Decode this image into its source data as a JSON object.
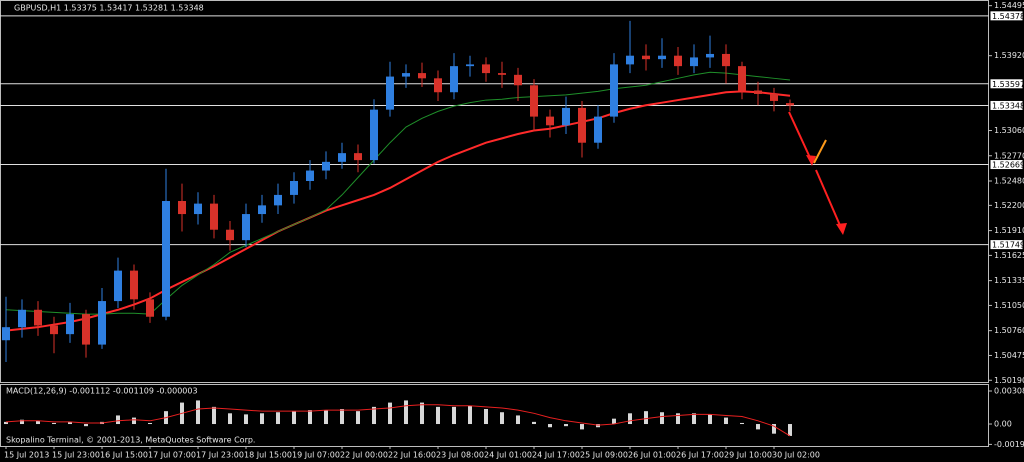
{
  "chart_data": [
    {
      "type": "candlestick",
      "title": "GBPUSD,H1  1.53375 1.53417 1.53281 1.53348",
      "categories": [
        "15 Jul 2013",
        null,
        null,
        "15 Jul 23:00",
        null,
        null,
        "16 Jul 15:00",
        null,
        null,
        "17 Jul 07:00",
        null,
        null,
        "17 Jul 23:00",
        null,
        null,
        "18 Jul 15:00",
        null,
        null,
        "19 Jul 07:00",
        null,
        null,
        "22 Jul 00:00",
        null,
        null,
        "22 Jul 16:00",
        null,
        null,
        "23 Jul 08:00",
        null,
        null,
        "24 Jul 01:00",
        null,
        null,
        "24 Jul 17:00",
        null,
        null,
        "25 Jul 09:00",
        null,
        null,
        "26 Jul 01:00",
        null,
        null,
        "26 Jul 17:00",
        null,
        null,
        "29 Jul 10:00",
        null,
        null,
        "30 Jul 02:00",
        null
      ],
      "open": [
        1.5065,
        1.508,
        1.51,
        1.5082,
        1.5072,
        1.5095,
        1.506,
        1.511,
        1.5145,
        1.5112,
        1.5092,
        1.5225,
        1.521,
        1.5222,
        1.5192,
        1.518,
        1.521,
        1.522,
        1.5232,
        1.5248,
        1.526,
        1.527,
        1.528,
        1.5272,
        1.533,
        1.5368,
        1.5372,
        1.5366,
        1.535,
        1.538,
        1.5382,
        1.5372,
        1.537,
        1.5358,
        1.5322,
        1.5312,
        1.5332,
        1.5292,
        1.5322,
        1.5382,
        1.5392,
        1.5388,
        1.5392,
        1.538,
        1.539,
        1.5394,
        1.538,
        1.5352,
        1.5348,
        1.53375
      ],
      "high": [
        1.5115,
        1.5112,
        1.511,
        1.5092,
        1.5108,
        1.51,
        1.5125,
        1.516,
        1.5152,
        1.512,
        1.5262,
        1.5245,
        1.5235,
        1.5232,
        1.5202,
        1.5222,
        1.5232,
        1.5245,
        1.5258,
        1.5272,
        1.5282,
        1.5292,
        1.529,
        1.5342,
        1.5385,
        1.5382,
        1.5384,
        1.5375,
        1.5395,
        1.5392,
        1.539,
        1.5385,
        1.5378,
        1.5365,
        1.533,
        1.5345,
        1.534,
        1.5335,
        1.5395,
        1.5432,
        1.5405,
        1.5412,
        1.5402,
        1.5405,
        1.5415,
        1.5405,
        1.5385,
        1.5362,
        1.5355,
        1.53417
      ],
      "low": [
        1.504,
        1.5068,
        1.507,
        1.505,
        1.5062,
        1.5045,
        1.5055,
        1.5102,
        1.51,
        1.5085,
        1.5088,
        1.519,
        1.5198,
        1.5182,
        1.5168,
        1.5172,
        1.52,
        1.521,
        1.5222,
        1.5238,
        1.525,
        1.5262,
        1.5258,
        1.5268,
        1.5322,
        1.5355,
        1.5356,
        1.534,
        1.5342,
        1.5368,
        1.5362,
        1.5355,
        1.534,
        1.5305,
        1.5298,
        1.5302,
        1.5275,
        1.5285,
        1.5315,
        1.5372,
        1.5375,
        1.5378,
        1.537,
        1.5372,
        1.5378,
        1.536,
        1.5342,
        1.5335,
        1.5328,
        1.53281
      ],
      "close": [
        1.508,
        1.51,
        1.5082,
        1.5072,
        1.5095,
        1.506,
        1.511,
        1.5145,
        1.5112,
        1.5092,
        1.5225,
        1.521,
        1.5222,
        1.5192,
        1.518,
        1.521,
        1.522,
        1.5232,
        1.5248,
        1.526,
        1.527,
        1.528,
        1.5272,
        1.533,
        1.5368,
        1.5372,
        1.5366,
        1.535,
        1.538,
        1.5382,
        1.5372,
        1.537,
        1.5358,
        1.5322,
        1.5312,
        1.5332,
        1.5292,
        1.5322,
        1.5382,
        1.5392,
        1.5388,
        1.5392,
        1.538,
        1.539,
        1.5394,
        1.538,
        1.5352,
        1.5348,
        1.534,
        1.53348
      ],
      "up_color": "#2f7fe0",
      "down_color": "#d8322a",
      "lines": [
        {
          "color": "#ff2a2a",
          "values": [
            1.5076,
            1.5078,
            1.508,
            1.5083,
            1.5086,
            1.509,
            1.5095,
            1.51,
            1.5106,
            1.5113,
            1.5123,
            1.5132,
            1.5141,
            1.515,
            1.516,
            1.517,
            1.518,
            1.519,
            1.5198,
            1.5206,
            1.5214,
            1.522,
            1.5226,
            1.5232,
            1.524,
            1.525,
            1.526,
            1.527,
            1.5278,
            1.5285,
            1.5292,
            1.5297,
            1.5302,
            1.5306,
            1.5308,
            1.5312,
            1.5316,
            1.532,
            1.5326,
            1.5331,
            1.5335,
            1.5338,
            1.5341,
            1.5344,
            1.5347,
            1.535,
            1.5351,
            1.535,
            1.5348,
            1.5346
          ]
        },
        {
          "color": "#1f8f2a",
          "values": [
            1.51,
            1.5099,
            1.5098,
            1.5097,
            1.5096,
            1.5095,
            1.5095,
            1.5096,
            1.5096,
            1.5095,
            1.5112,
            1.5128,
            1.514,
            1.5152,
            1.5166,
            1.5174,
            1.5182,
            1.519,
            1.5198,
            1.5206,
            1.5215,
            1.5232,
            1.5252,
            1.5272,
            1.5292,
            1.531,
            1.532,
            1.5328,
            1.5334,
            1.5338,
            1.5341,
            1.5342,
            1.5344,
            1.5345,
            1.5346,
            1.5347,
            1.5349,
            1.5351,
            1.5354,
            1.5356,
            1.5358,
            1.5362,
            1.5366,
            1.537,
            1.5373,
            1.5372,
            1.537,
            1.5368,
            1.5366,
            1.5364
          ]
        }
      ],
      "levels": [
        1.54378,
        1.53597,
        1.53348,
        1.52669,
        1.51749
      ],
      "ylim": [
        1.5017,
        1.5456
      ],
      "yticks": [
        1.54495,
        {
          "value": 1.5392,
          "label": "1.53920"
        },
        {
          "value": 1.5306,
          "label": "1.53060"
        },
        {
          "value": 1.5277,
          "label": "1.52770"
        },
        {
          "value": 1.5248,
          "label": "1.52480"
        },
        {
          "value": 1.522,
          "label": "1.52200"
        },
        {
          "value": 1.5191,
          "label": "1.51910"
        },
        1.51625,
        1.51335,
        {
          "value": 1.5105,
          "label": "1.51050"
        },
        {
          "value": 1.5076,
          "label": "1.50760"
        },
        1.50475,
        {
          "value": 1.5019,
          "label": "1.50190"
        }
      ]
    },
    {
      "type": "macd",
      "title": "MACD(12,26,9) -0.001112 -0.001109 -0.000003",
      "color": "#d8d8d8",
      "values": [
        0.0002,
        0.0004,
        0.0003,
        0.0001,
        0.0002,
        -0.0002,
        0.0002,
        0.0008,
        0.0006,
        0.0001,
        0.0012,
        0.002,
        0.0022,
        0.0016,
        0.001,
        0.0009,
        0.001,
        0.0011,
        0.0012,
        0.0013,
        0.0013,
        0.0014,
        0.0012,
        0.0016,
        0.002,
        0.0022,
        0.002,
        0.0016,
        0.0016,
        0.0017,
        0.0014,
        0.0011,
        0.0008,
        0.0002,
        -0.0003,
        -0.0002,
        -0.0005,
        -0.0003,
        0.0005,
        0.001,
        0.0012,
        0.0011,
        0.001,
        0.001,
        0.0009,
        0.0006,
        0.0001,
        -0.0005,
        -0.0009,
        -0.001112
      ],
      "lines": [
        {
          "color": "#e82020",
          "values": [
            0.0002,
            0.0003,
            0.0003,
            0.0002,
            0.0002,
            0.0001,
            0.0001,
            0.0003,
            0.0004,
            0.0003,
            0.0006,
            0.001,
            0.0014,
            0.0015,
            0.0014,
            0.0013,
            0.0012,
            0.0012,
            0.0012,
            0.0012,
            0.0013,
            0.0013,
            0.0013,
            0.0014,
            0.0015,
            0.0017,
            0.0018,
            0.0018,
            0.0017,
            0.0017,
            0.0016,
            0.0015,
            0.0013,
            0.001,
            0.0006,
            0.0003,
            0.0001,
            -0.0001,
            0.0,
            0.0003,
            0.0005,
            0.0007,
            0.0008,
            0.0009,
            0.0009,
            0.0008,
            0.0007,
            0.0003,
            -0.0002,
            -0.001109
          ]
        }
      ],
      "ylim": [
        -0.00205,
        0.00364
      ],
      "yticks": [
        0.00308,
        {
          "value": 0,
          "label": "0.00"
        },
        {
          "value": -0.0019,
          "label": "-0.00190"
        }
      ]
    }
  ],
  "footer": "Skopalino Terminal, © 2001-2013, MetaQuotes Software Corp."
}
